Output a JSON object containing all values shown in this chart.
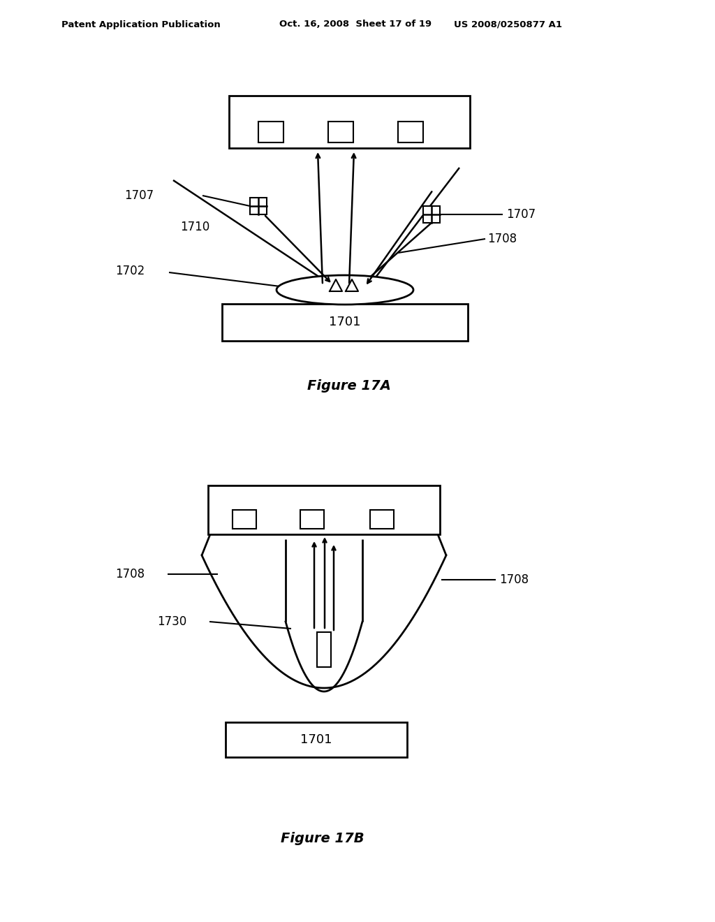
{
  "bg_color": "#ffffff",
  "line_color": "#000000",
  "header_text_left": "Patent Application Publication",
  "header_text_mid": "Oct. 16, 2008  Sheet 17 of 19",
  "header_text_right": "US 2008/0250877 A1",
  "fig17a_caption": "Figure 17A",
  "fig17b_caption": "Figure 17B",
  "label_1701": "1701",
  "label_1702": "1702",
  "label_1707a": "1707",
  "label_1707b": "1707",
  "label_1708": "1708",
  "label_1710": "1710",
  "label_1701b": "1701",
  "label_1708b_left": "1708",
  "label_1708b_right": "1708",
  "label_1730": "1730"
}
